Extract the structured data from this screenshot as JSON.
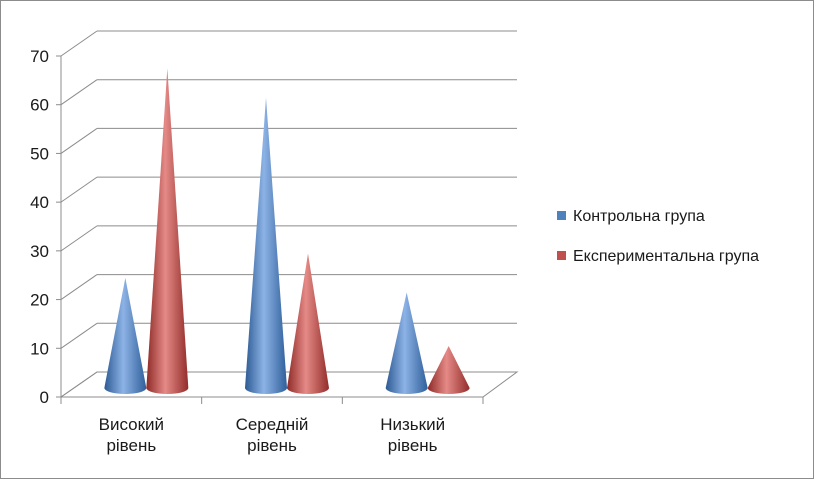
{
  "chart_data": {
    "type": "bar",
    "bar_shape": "cone-3d",
    "categories": [
      [
        "Високий",
        "рівень"
      ],
      [
        "Середній",
        "рівень"
      ],
      [
        "Низький",
        "рівень"
      ]
    ],
    "series": [
      {
        "name": "Контрольна група",
        "values": [
          22,
          59,
          19
        ],
        "color": "#4f81bd"
      },
      {
        "name": "Експериментальна група",
        "values": [
          65,
          27,
          8
        ],
        "color": "#c0504d"
      }
    ],
    "ylim": [
      0,
      70
    ],
    "yticks": [
      0,
      10,
      20,
      30,
      40,
      50,
      60,
      70
    ],
    "grid": true,
    "legend_position": "right"
  }
}
